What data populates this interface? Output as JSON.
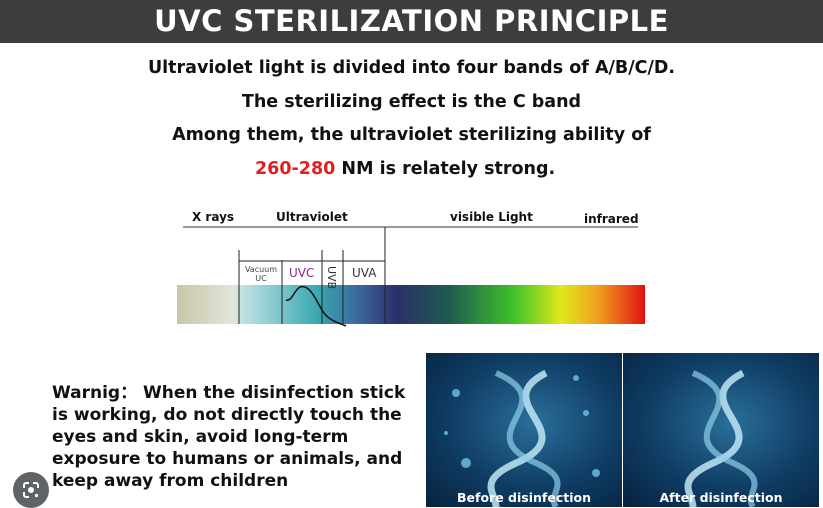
{
  "title": "UVC STERILIZATION PRINCIPLE",
  "intro": {
    "line1": "Ultraviolet light is divided into four bands of A/B/C/D.",
    "line2": "The sterilizing effect is the C band",
    "line3": "Among them, the ultraviolet sterilizing ability of",
    "line4_highlight": "260-280",
    "line4_rest": " NM is relately strong.",
    "highlight_color": "#e02020"
  },
  "spectrum": {
    "top_labels": [
      "X rays",
      "Ultraviolet",
      "visible Light",
      "infrared"
    ],
    "bands": [
      "Vacuum UC",
      "UVC",
      "UVB",
      "UVA"
    ]
  },
  "warning": "Warnig：  When the disinfection stick is working, do not directly touch the eyes and skin, avoid long-term exposure to humans or animals, and keep away from children",
  "images": [
    {
      "caption": "Before disinfection"
    },
    {
      "caption": "After disinfection"
    }
  ],
  "lens_button": {
    "icon": "google-lens-icon"
  }
}
